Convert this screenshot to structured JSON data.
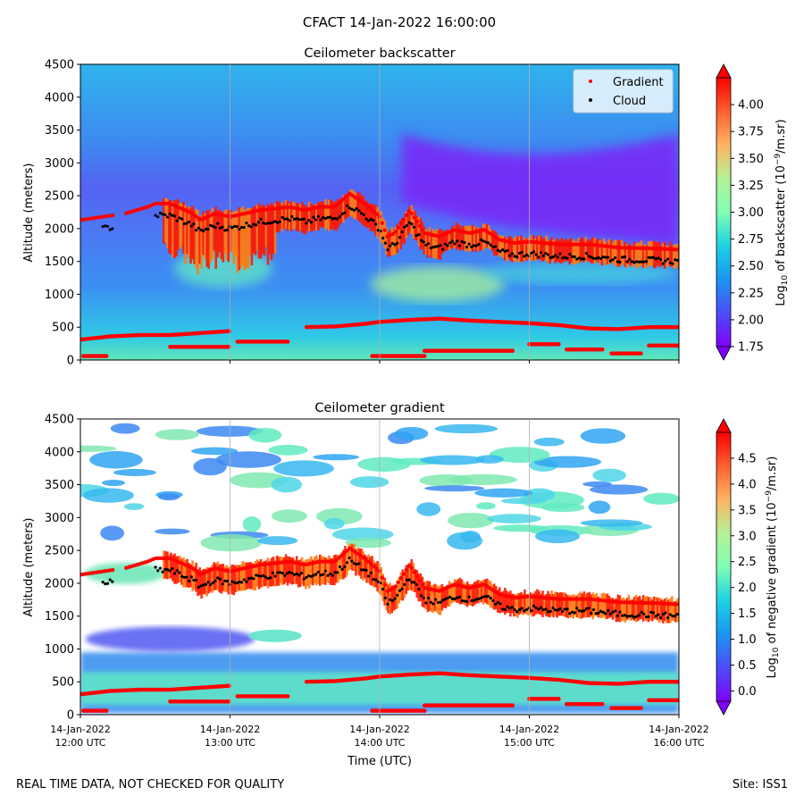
{
  "suptitle": "CFACT 14-Jan-2022 16:00:00",
  "footer": {
    "left": "REAL TIME DATA, NOT CHECKED FOR QUALITY",
    "right": "Site: ISS1"
  },
  "colors": {
    "gradient_marker": "#ff0000",
    "cloud_marker": "#000000",
    "band_red": "#ff1800",
    "band_orange": "#ff7a10"
  },
  "chart_data": [
    {
      "type": "heatmap",
      "title": "Ceilometer backscatter",
      "ylabel": "Altitude (meters)",
      "ylim": [
        0,
        4500
      ],
      "yticks": [
        "0",
        "500",
        "1000",
        "1500",
        "2000",
        "2500",
        "3000",
        "3500",
        "4000",
        "4500"
      ],
      "legend": {
        "placement": "top-right",
        "entries": [
          {
            "label": "Gradient"
          },
          {
            "label": "Cloud"
          }
        ]
      },
      "colorbar": {
        "label_prefix": "Log",
        "label_sub": "10",
        "label_mid": " of backscatter (10",
        "label_sup": "−9",
        "label_suffix": "/m.sr)",
        "range": [
          1.75,
          4.25
        ],
        "ticks": [
          "1.75",
          "2.00",
          "2.25",
          "2.50",
          "2.75",
          "3.00",
          "3.25",
          "3.50",
          "3.75",
          "4.00"
        ]
      }
    },
    {
      "type": "heatmap",
      "title": "Ceilometer gradient",
      "ylabel": "Altitude (meters)",
      "xlabel": "Time (UTC)",
      "ylim": [
        0,
        4500
      ],
      "yticks": [
        "0",
        "500",
        "1000",
        "1500",
        "2000",
        "2500",
        "3000",
        "3500",
        "4000",
        "4500"
      ],
      "xticks": [
        {
          "date": "14-Jan-2022",
          "time": "12:00 UTC"
        },
        {
          "date": "14-Jan-2022",
          "time": "13:00 UTC"
        },
        {
          "date": "14-Jan-2022",
          "time": "14:00 UTC"
        },
        {
          "date": "14-Jan-2022",
          "time": "15:00 UTC"
        },
        {
          "date": "14-Jan-2022",
          "time": "16:00 UTC"
        }
      ],
      "colorbar": {
        "label_prefix": "Log",
        "label_sub": "10",
        "label_mid": " of negative gradient (10",
        "label_sup": "−9",
        "label_suffix": "/m.sr)",
        "range": [
          -0.2,
          5.0
        ],
        "ticks": [
          "0.0",
          "0.5",
          "1.0",
          "1.5",
          "2.0",
          "2.5",
          "3.0",
          "3.5",
          "4.0",
          "4.5"
        ]
      }
    }
  ],
  "series": {
    "cloud_base_upper": {
      "t": [
        0.0,
        0.15,
        0.3,
        0.45,
        0.5,
        0.6,
        0.75,
        0.8,
        0.9,
        1.0,
        1.2,
        1.4,
        1.5,
        1.6,
        1.7,
        1.8,
        1.9,
        2.0,
        2.05,
        2.1,
        2.2,
        2.3,
        2.4,
        2.5,
        2.6,
        2.7,
        2.8,
        2.9,
        3.0,
        3.2,
        3.4,
        3.6,
        3.8,
        4.0
      ],
      "h": [
        1950,
        2000,
        2050,
        2150,
        2200,
        2200,
        2050,
        1950,
        2050,
        2000,
        2100,
        2150,
        2100,
        2150,
        2150,
        2350,
        2200,
        2000,
        1700,
        1750,
        2100,
        1750,
        1700,
        1800,
        1750,
        1800,
        1650,
        1600,
        1620,
        1580,
        1580,
        1530,
        1520,
        1500
      ]
    },
    "low_layer": {
      "t": [
        0.0,
        0.2,
        0.4,
        0.6,
        0.8,
        1.0,
        1.05,
        1.5,
        1.7,
        1.9,
        2.0,
        2.2,
        2.4,
        2.6,
        2.8,
        3.0,
        3.2,
        3.4,
        3.6,
        3.8,
        4.0
      ],
      "h": [
        310,
        360,
        380,
        380,
        410,
        440,
        430,
        500,
        510,
        550,
        580,
        610,
        630,
        600,
        580,
        560,
        530,
        480,
        470,
        500,
        500
      ]
    },
    "surface_segments": [
      [
        0.02,
        0.18,
        60
      ],
      [
        0.6,
        1.0,
        200
      ],
      [
        1.05,
        1.4,
        280
      ],
      [
        1.95,
        2.3,
        60
      ],
      [
        2.3,
        2.9,
        140
      ],
      [
        3.0,
        3.2,
        240
      ],
      [
        3.25,
        3.5,
        160
      ],
      [
        3.55,
        3.75,
        100
      ],
      [
        3.8,
        4.0,
        220
      ]
    ]
  }
}
